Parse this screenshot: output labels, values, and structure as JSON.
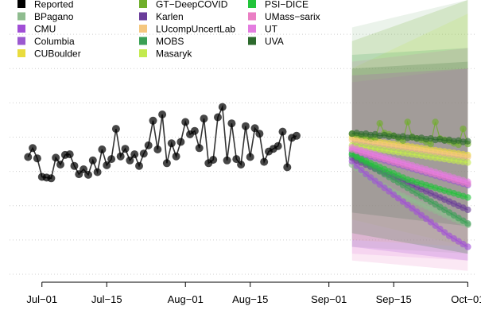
{
  "chart_data": {
    "type": "line",
    "title": "",
    "xlabel": "",
    "ylabel": "",
    "grid": true,
    "legend_placement": "top-left",
    "x_domain": [
      "2020-06-24",
      "2020-10-03"
    ],
    "y_domain": [
      0,
      400
    ],
    "x_ticks": [
      {
        "date": "2020-07-01",
        "label": "Jul−01"
      },
      {
        "date": "2020-07-15",
        "label": "Jul−15"
      },
      {
        "date": "2020-08-01",
        "label": "Aug−01"
      },
      {
        "date": "2020-08-15",
        "label": "Aug−15"
      },
      {
        "date": "2020-09-01",
        "label": "Sep−01"
      },
      {
        "date": "2020-09-15",
        "label": "Sep−15"
      },
      {
        "date": "2020-10-01",
        "label": "Oct−01"
      }
    ],
    "legend": [
      {
        "name": "Reported",
        "color": "#000000"
      },
      {
        "name": "BPagano",
        "color": "#8fbc8f"
      },
      {
        "name": "CMU",
        "color": "#a14fd6"
      },
      {
        "name": "Columbia",
        "color": "#9b59d0"
      },
      {
        "name": "CUBoulder",
        "color": "#e9dc3e"
      },
      {
        "name": "GT−DeepCOVID",
        "color": "#6fae2a"
      },
      {
        "name": "Karlen",
        "color": "#6a3d9a"
      },
      {
        "name": "LUcompUncertLab",
        "color": "#f5c77e"
      },
      {
        "name": "MOBS",
        "color": "#3aa055"
      },
      {
        "name": "Masaryk",
        "color": "#c3ea4f"
      },
      {
        "name": "PSI−DICE",
        "color": "#22c43a"
      },
      {
        "name": "UMass−sarix",
        "color": "#ea7fc4"
      },
      {
        "name": "UT",
        "color": "#e47de0"
      },
      {
        "name": "UVA",
        "color": "#2d6a2d"
      }
    ],
    "series": [
      {
        "name": "Reported",
        "color": "#000000",
        "start_date": "2020-06-28",
        "values": [
          171,
          184,
          169,
          142,
          141,
          140,
          170,
          160,
          174,
          175,
          158,
          146,
          153,
          145,
          166,
          149,
          182,
          159,
          168,
          212,
          172,
          183,
          166,
          175,
          158,
          176,
          188,
          224,
          182,
          233,
          162,
          191,
          172,
          193,
          222,
          204,
          209,
          184,
          227,
          162,
          167,
          229,
          244,
          166,
          220,
          168,
          160,
          216,
          171,
          213,
          205,
          164,
          179,
          183,
          187,
          208,
          156,
          199,
          202
        ]
      },
      {
        "name": "BPagano",
        "color": "#8fbc8f",
        "start_date": "2020-09-06",
        "values": [
          160,
          155,
          150,
          145,
          140,
          136,
          132,
          128,
          124,
          120,
          117,
          114,
          111,
          108,
          105,
          102,
          99,
          96,
          93,
          90,
          87,
          84,
          81,
          78,
          75,
          72
        ]
      },
      {
        "name": "CMU",
        "color": "#a14fd6",
        "start_date": "2020-09-06",
        "values": [
          165,
          158,
          152,
          146,
          141,
          136,
          131,
          126,
          121,
          116,
          111,
          106,
          101,
          96,
          91,
          86,
          81,
          76,
          71,
          66,
          61,
          56,
          52,
          48,
          44,
          40
        ]
      },
      {
        "name": "Columbia",
        "color": "#9b59d0",
        "start_date": "2020-09-06",
        "values": [
          180,
          178,
          176,
          174,
          172,
          170,
          168,
          166,
          164,
          162,
          160,
          158,
          156,
          154,
          152,
          150,
          148,
          146,
          144,
          142,
          140,
          138,
          136,
          134,
          132,
          130
        ]
      },
      {
        "name": "CUBoulder",
        "color": "#e9dc3e",
        "start_date": "2020-09-06",
        "values": [
          200,
          198,
          197,
          196,
          195,
          194,
          193,
          192,
          191,
          190,
          189,
          188,
          187,
          186,
          185,
          184,
          183,
          182,
          181,
          180,
          179,
          178,
          177,
          176,
          175,
          174
        ]
      },
      {
        "name": "GT−DeepCOVID",
        "color": "#6fae2a",
        "start_date": "2020-09-06",
        "values": [
          205,
          203,
          201,
          199,
          197,
          199,
          220,
          206,
          204,
          202,
          198,
          195,
          222,
          200,
          198,
          196,
          193,
          190,
          222,
          198,
          196,
          194,
          191,
          189,
          212,
          190
        ]
      },
      {
        "name": "Karlen",
        "color": "#6a3d9a",
        "start_date": "2020-09-06",
        "values": [
          170,
          166,
          163,
          160,
          157,
          154,
          151,
          148,
          145,
          142,
          139,
          136,
          133,
          130,
          127,
          124,
          121,
          118,
          115,
          112,
          109,
          106,
          103,
          100,
          97,
          94
        ]
      },
      {
        "name": "LUcompUncertLab",
        "color": "#f5c77e",
        "start_date": "2020-09-06",
        "values": [
          196,
          195,
          194,
          193,
          192,
          191,
          190,
          189,
          188,
          187,
          186,
          185,
          184,
          183,
          182,
          181,
          180,
          179,
          178,
          177,
          176,
          175,
          174,
          173,
          172,
          171
        ]
      },
      {
        "name": "MOBS",
        "color": "#3aa055",
        "start_date": "2020-09-06",
        "values": [
          174,
          170,
          166,
          162,
          158,
          154,
          150,
          146,
          142,
          138,
          134,
          130,
          126,
          122,
          118,
          114,
          110,
          106,
          102,
          98,
          94,
          90,
          86,
          82,
          78,
          74
        ]
      },
      {
        "name": "Masaryk",
        "color": "#c3ea4f",
        "start_date": "2020-09-06",
        "values": [
          188,
          187,
          186,
          185,
          184,
          183,
          182,
          181,
          180,
          179,
          178,
          177,
          176,
          175,
          174,
          173,
          172,
          171,
          170,
          169,
          168,
          167,
          166,
          165,
          164,
          163
        ]
      },
      {
        "name": "PSI−DICE",
        "color": "#22c43a",
        "start_date": "2020-09-06",
        "values": [
          176,
          172,
          168,
          165,
          162,
          159,
          156,
          153,
          150,
          147,
          144,
          141,
          138,
          136,
          134,
          132,
          130,
          128,
          126,
          124,
          122,
          120,
          118,
          116,
          114,
          112
        ]
      },
      {
        "name": "UMass−sarix",
        "color": "#ea7fc4",
        "start_date": "2020-09-06",
        "values": [
          182,
          180,
          178,
          176,
          174,
          172,
          170,
          168,
          166,
          164,
          162,
          160,
          158,
          156,
          154,
          152,
          150,
          148,
          146,
          144,
          142,
          140,
          138,
          136,
          134,
          132
        ]
      },
      {
        "name": "UT",
        "color": "#e47de0",
        "start_date": "2020-09-06",
        "values": [
          185,
          183,
          181,
          179,
          177,
          175,
          173,
          171,
          169,
          167,
          165,
          163,
          161,
          159,
          157,
          155,
          153,
          151,
          149,
          147,
          145,
          143,
          141,
          139,
          137,
          135
        ]
      },
      {
        "name": "UVA",
        "color": "#2d6a2d",
        "start_date": "2020-09-06",
        "values": [
          205,
          206,
          204,
          205,
          203,
          204,
          202,
          203,
          201,
          202,
          200,
          201,
          199,
          200,
          198,
          199,
          197,
          198,
          196,
          197,
          195,
          196,
          194,
          195,
          193,
          194
        ]
      }
    ],
    "intervals": [
      {
        "series": "BPagano",
        "color": "#8fbc8f",
        "lower": [
          40,
          30
        ],
        "upper": [
          360,
          400
        ]
      },
      {
        "series": "GT−DeepCOVID",
        "color": "#6fae2a",
        "lower": [
          60,
          30
        ],
        "upper": [
          340,
          400
        ]
      },
      {
        "series": "Masaryk",
        "color": "#c3ea4f",
        "lower": [
          80,
          40
        ],
        "upper": [
          300,
          380
        ]
      },
      {
        "series": "UMass−sarix",
        "color": "#ea7fc4",
        "lower": [
          20,
          5
        ],
        "upper": [
          310,
          330
        ]
      },
      {
        "series": "UT",
        "color": "#e47de0",
        "lower": [
          30,
          20
        ],
        "upper": [
          280,
          300
        ]
      },
      {
        "series": "LUcompUncertLab",
        "color": "#f5c77e",
        "lower": [
          50,
          40
        ],
        "upper": [
          290,
          300
        ]
      },
      {
        "series": "MOBS",
        "color": "#3aa055",
        "lower": [
          60,
          30
        ],
        "upper": [
          320,
          330
        ]
      },
      {
        "series": "UVA",
        "color": "#2d6a2d",
        "lower": [
          90,
          70
        ],
        "upper": [
          300,
          310
        ]
      },
      {
        "series": "CMU",
        "color": "#a14fd6",
        "lower": [
          40,
          20
        ],
        "upper": [
          290,
          300
        ]
      }
    ]
  }
}
